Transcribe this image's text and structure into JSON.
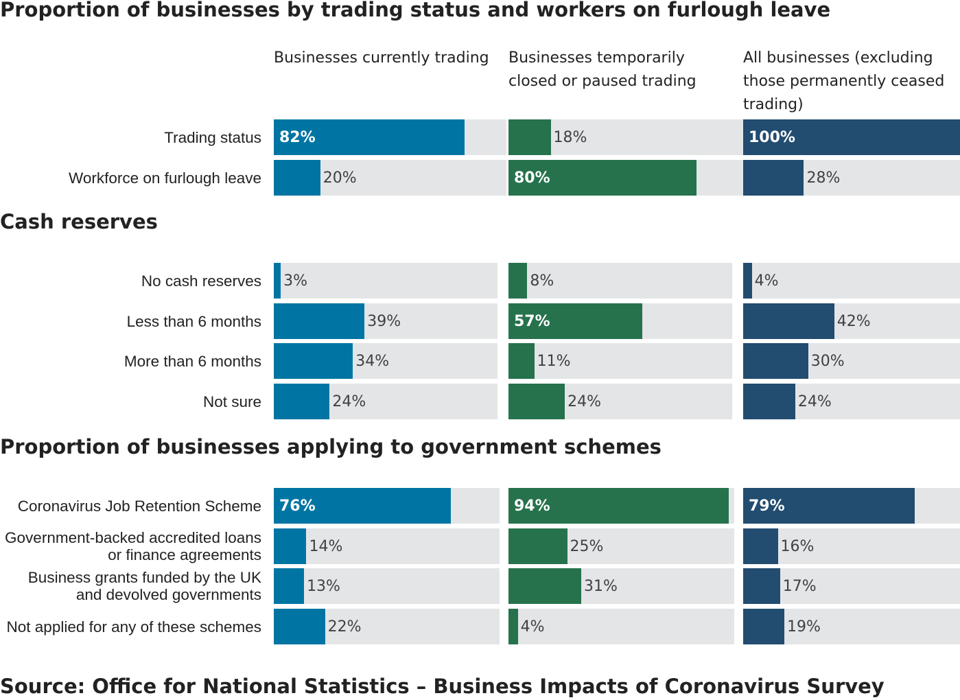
{
  "colors": {
    "series": [
      "#0075a3",
      "#26724c",
      "#224c70"
    ],
    "track": "#e4e5e7",
    "text": "#222222"
  },
  "column_headers": [
    "Businesses currently trading",
    "Businesses temporarily closed or paused trading",
    "All businesses (excluding those permanently ceased trading)"
  ],
  "source": "Source: Office for National Statistics – Business Impacts of Coronavirus Survey",
  "chart_data": [
    {
      "type": "bar",
      "title": "Proportion of businesses by trading status and workers on furlough leave",
      "categories": [
        "Trading status",
        "Workforce on furlough leave"
      ],
      "series": [
        {
          "name": "Businesses currently trading",
          "values": [
            82,
            20
          ],
          "labels": [
            "82%",
            "20%"
          ]
        },
        {
          "name": "Businesses temporarily closed or paused trading",
          "values": [
            18,
            80
          ],
          "labels": [
            "18%",
            "80%"
          ]
        },
        {
          "name": "All businesses (excluding those permanently ceased trading)",
          "values": [
            100,
            28
          ],
          "labels": [
            "100%",
            "28%"
          ]
        }
      ],
      "xlim": [
        0,
        100
      ]
    },
    {
      "type": "bar",
      "title": "Cash reserves",
      "categories": [
        "No cash reserves",
        "Less than 6 months",
        "More than 6 months",
        "Not sure"
      ],
      "series": [
        {
          "name": "Businesses currently trading",
          "values": [
            3,
            39,
            34,
            24
          ],
          "labels": [
            "3%",
            "39%",
            "34%",
            "24%"
          ]
        },
        {
          "name": "Businesses temporarily closed or paused trading",
          "values": [
            8,
            57,
            11,
            24
          ],
          "labels": [
            "8%",
            "57%",
            "11%",
            "24%"
          ]
        },
        {
          "name": "All businesses (excluding those permanently ceased trading)",
          "values": [
            4,
            42,
            30,
            24
          ],
          "labels": [
            "4%",
            "42%",
            "30%",
            "24%"
          ]
        }
      ],
      "xlim": [
        0,
        100
      ]
    },
    {
      "type": "bar",
      "title": "Proportion of businesses applying to government schemes",
      "categories": [
        "Coronavirus Job Retention Scheme",
        "Government-backed accredited loans or finance agreements",
        "Business grants funded by the UK and devolved governments",
        "Not applied for any of these schemes"
      ],
      "series": [
        {
          "name": "Businesses currently trading",
          "values": [
            76,
            14,
            13,
            22
          ],
          "labels": [
            "76%",
            "14%",
            "13%",
            "22%"
          ]
        },
        {
          "name": "Businesses temporarily closed or paused trading",
          "values": [
            94,
            25,
            31,
            4
          ],
          "labels": [
            "94%",
            "25%",
            "31%",
            "4%"
          ]
        },
        {
          "name": "All businesses (excluding those permanently ceased trading)",
          "values": [
            79,
            16,
            17,
            19
          ],
          "labels": [
            "79%",
            "16%",
            "17%",
            "19%"
          ]
        }
      ],
      "xlim": [
        0,
        100
      ]
    }
  ]
}
